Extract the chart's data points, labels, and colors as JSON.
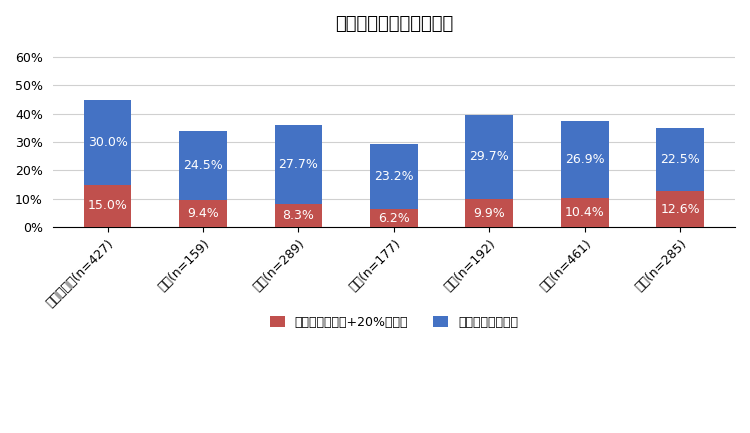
{
  "title": "所属する部局以外の部局",
  "categories": [
    "総務・企画(n=427)",
    "税務(n=159)",
    "民生(n=289)",
    "衛生(n=177)",
    "土木(n=192)",
    "教育(n=461)",
    "消防(n=285)"
  ],
  "series1_label": "増加している（+20%以上）",
  "series2_label": "やや増加している",
  "series1_values": [
    15.0,
    9.4,
    8.3,
    6.2,
    9.9,
    10.4,
    12.6
  ],
  "series2_values": [
    30.0,
    24.5,
    27.7,
    23.2,
    29.7,
    26.9,
    22.5
  ],
  "series1_color": "#c0504d",
  "series2_color": "#4472c4",
  "bar_width": 0.5,
  "ylim": [
    0,
    65
  ],
  "yticks": [
    0,
    10,
    20,
    30,
    40,
    50,
    60
  ],
  "ytick_labels": [
    "0%",
    "10%",
    "20%",
    "30%",
    "40%",
    "50%",
    "60%"
  ],
  "title_fontsize": 13,
  "label_fontsize": 9,
  "tick_fontsize": 9,
  "legend_fontsize": 9,
  "background_color": "#ffffff",
  "grid_color": "#d0d0d0"
}
